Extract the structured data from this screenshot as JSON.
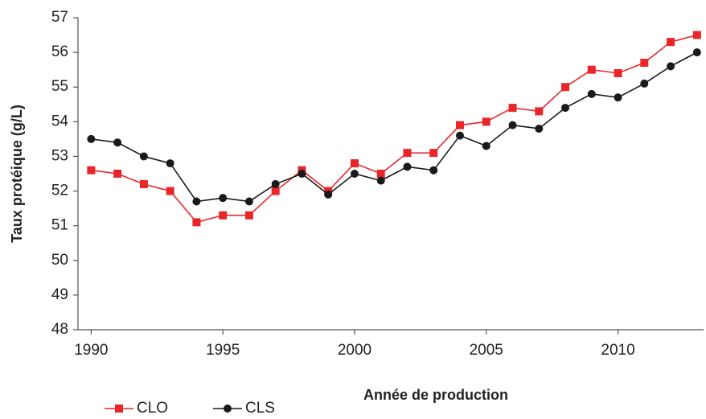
{
  "chart_data": {
    "type": "line",
    "x_label": "Année de production",
    "y_label": "Taux protéique (g/L)",
    "x": [
      1990,
      1991,
      1992,
      1993,
      1994,
      1995,
      1996,
      1997,
      1998,
      1999,
      2000,
      2001,
      2002,
      2003,
      2004,
      2005,
      2006,
      2007,
      2008,
      2009,
      2010,
      2011,
      2012,
      2013
    ],
    "series": [
      {
        "name": "CLO",
        "color": "#e8262a",
        "marker": "square",
        "values": [
          52.6,
          52.5,
          52.2,
          52.0,
          51.1,
          51.3,
          51.3,
          52.0,
          52.6,
          52.0,
          52.8,
          52.5,
          53.1,
          53.1,
          53.9,
          54.0,
          54.4,
          54.3,
          55.0,
          55.5,
          55.4,
          55.7,
          56.3,
          56.5
        ]
      },
      {
        "name": "CLS",
        "color": "#1a1a1a",
        "marker": "circle",
        "values": [
          53.5,
          53.4,
          53.0,
          52.8,
          51.7,
          51.8,
          51.7,
          52.2,
          52.5,
          51.9,
          52.5,
          52.3,
          52.7,
          52.6,
          53.6,
          53.3,
          53.9,
          53.8,
          54.4,
          54.8,
          54.7,
          55.1,
          55.6,
          56.0
        ]
      }
    ],
    "xlim": [
      1989.5,
      2013.25
    ],
    "xticks": [
      1990,
      1995,
      2000,
      2005,
      2010
    ],
    "ylim": [
      48,
      57
    ],
    "yticks": [
      48,
      49,
      50,
      51,
      52,
      53,
      54,
      55,
      56,
      57
    ],
    "grid": false,
    "legend": "bottom-left"
  }
}
